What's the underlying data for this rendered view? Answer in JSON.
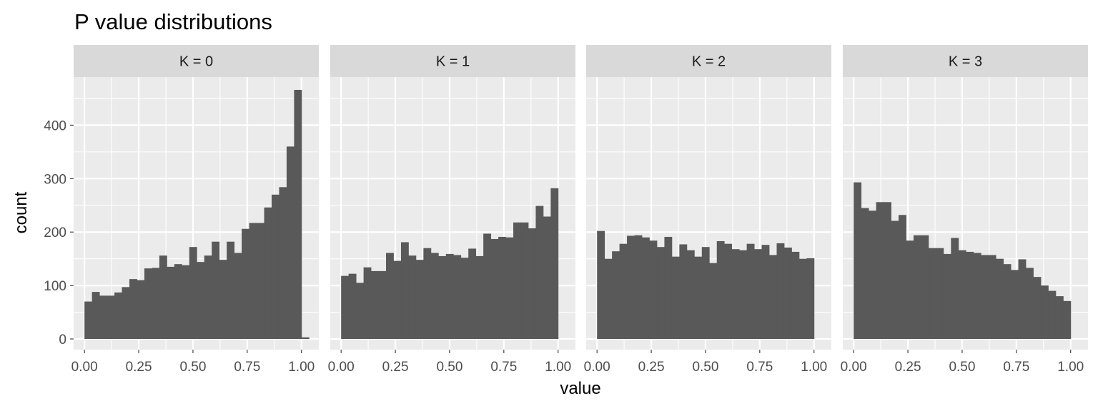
{
  "chart_data": {
    "type": "bar",
    "title": "P value distributions",
    "xlabel": "value",
    "ylabel": "count",
    "x_range": [
      -0.05,
      1.08
    ],
    "y_range": [
      -20,
      490
    ],
    "x_ticks": [
      0,
      0.25,
      0.5,
      0.75,
      1
    ],
    "x_tick_labels": [
      "0.00",
      "0.25",
      "0.50",
      "0.75",
      "1.00"
    ],
    "y_ticks": [
      0,
      100,
      200,
      300,
      400
    ],
    "y_tick_labels": [
      "0",
      "100",
      "200",
      "300",
      "400"
    ],
    "bin_width": 0.0345,
    "grid": true,
    "legend": "none",
    "colors": {
      "panel_bg": "#ebebeb",
      "grid": "#ffffff",
      "strip_bg": "#d9d9d9",
      "bar": "#595959"
    },
    "facets": [
      {
        "label": "K = 0",
        "values": [
          70,
          88,
          81,
          81,
          87,
          97,
          112,
          110,
          132,
          133,
          156,
          135,
          140,
          138,
          172,
          144,
          156,
          182,
          148,
          182,
          161,
          206,
          217,
          217,
          246,
          270,
          284,
          360,
          466,
          3
        ]
      },
      {
        "label": "K = 1",
        "values": [
          118,
          122,
          105,
          134,
          127,
          127,
          161,
          146,
          181,
          156,
          148,
          170,
          161,
          155,
          159,
          157,
          152,
          169,
          155,
          197,
          187,
          191,
          190,
          218,
          218,
          207,
          249,
          229,
          282
        ]
      },
      {
        "label": "K = 2",
        "values": [
          202,
          150,
          164,
          178,
          193,
          194,
          190,
          184,
          172,
          191,
          154,
          177,
          166,
          154,
          172,
          142,
          183,
          178,
          168,
          166,
          178,
          168,
          176,
          157,
          179,
          171,
          163,
          150,
          151
        ]
      },
      {
        "label": "K = 3",
        "values": [
          293,
          245,
          240,
          256,
          256,
          221,
          232,
          184,
          194,
          194,
          170,
          170,
          159,
          189,
          166,
          163,
          161,
          157,
          157,
          150,
          140,
          129,
          149,
          133,
          116,
          100,
          90,
          80,
          71
        ]
      }
    ]
  }
}
